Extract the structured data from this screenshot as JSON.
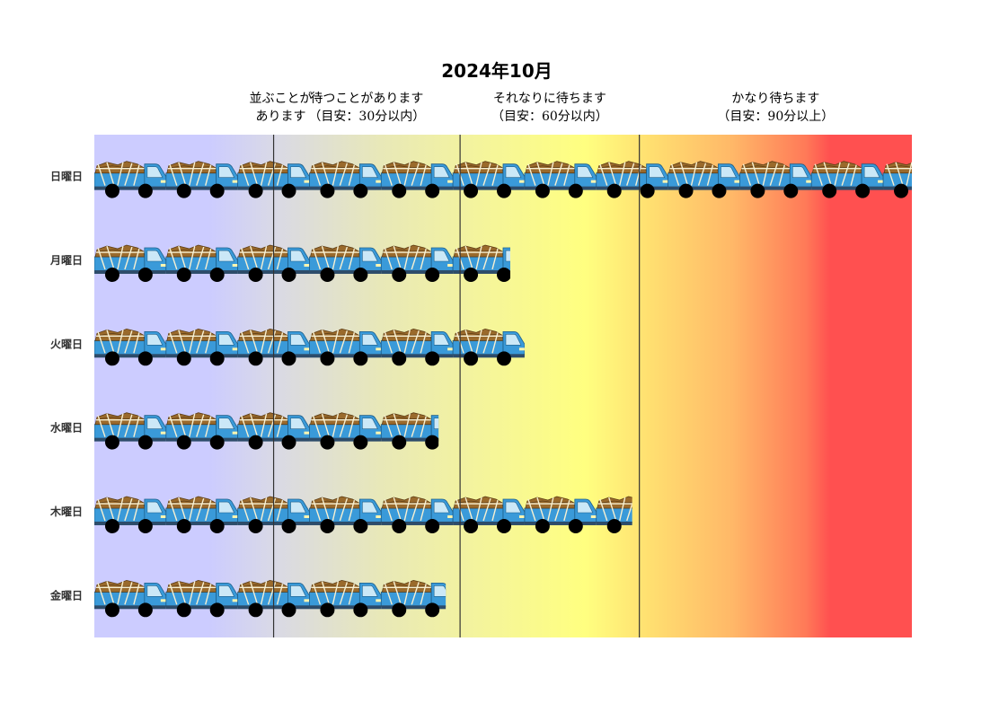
{
  "chart_data": {
    "type": "bar",
    "orientation": "horizontal",
    "title": "2024年10月",
    "categories": [
      "日曜日",
      "月曜日",
      "火曜日",
      "水曜日",
      "木曜日",
      "金曜日"
    ],
    "values": [
      114,
      58,
      60,
      48,
      75,
      49
    ],
    "xlim": [
      0,
      114
    ],
    "zones": [
      {
        "label_line1": "並ぶことが",
        "label_line2": "あります",
        "upper_bound": 25,
        "color": "#ccccff"
      },
      {
        "label_line1": "待つことがあります",
        "label_line2": "（目安：30分以内）",
        "upper_bound": 51,
        "color": "#ffff88"
      },
      {
        "label_line1": "それなりに待ちます",
        "label_line2": "（目安：60分以内）",
        "upper_bound": 76,
        "color": "#ffd070"
      },
      {
        "label_line1": "かなり待ちます",
        "label_line2": "（目安：90分以上）",
        "upper_bound": 114,
        "color": "#ff5050"
      }
    ],
    "icon": "truck-icon",
    "icon_unit": 10
  }
}
